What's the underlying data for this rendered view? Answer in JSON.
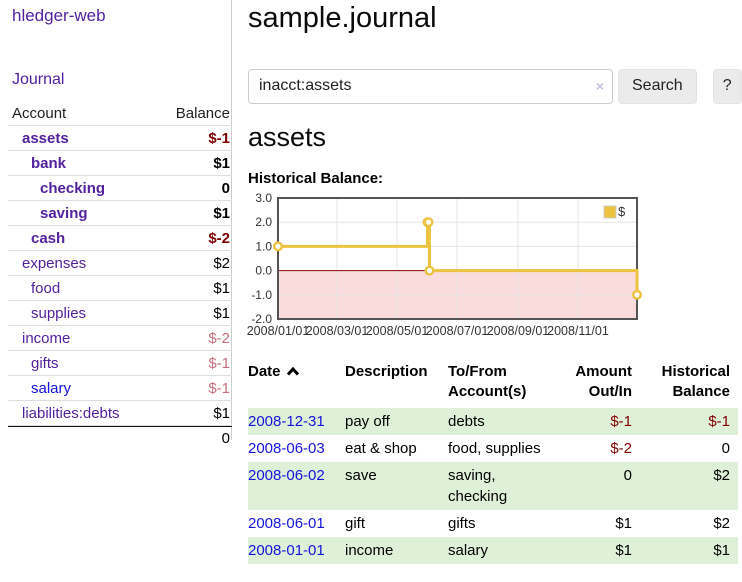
{
  "sidebar": {
    "app_title": "hledger-web",
    "nav": {
      "journal_label": "Journal"
    },
    "table": {
      "account_header": "Account",
      "balance_header": "Balance"
    },
    "accounts": [
      {
        "name": "assets",
        "balance": "$-1"
      },
      {
        "name": "bank",
        "balance": "$1"
      },
      {
        "name": "checking",
        "balance": "0"
      },
      {
        "name": "saving",
        "balance": "$1"
      },
      {
        "name": "cash",
        "balance": "$-2"
      },
      {
        "name": "expenses",
        "balance": "$2"
      },
      {
        "name": "food",
        "balance": "$1"
      },
      {
        "name": "supplies",
        "balance": "$1"
      },
      {
        "name": "income",
        "balance": "$-2"
      },
      {
        "name": "gifts",
        "balance": "$-1"
      },
      {
        "name": "salary",
        "balance": "$-1"
      },
      {
        "name": "liabilities:debts",
        "balance": "$1"
      }
    ],
    "total": "0"
  },
  "main": {
    "title": "sample.journal",
    "search": {
      "value": "inacct:assets",
      "clear_icon": "×",
      "button_label": "Search",
      "help_label": "?"
    },
    "account_heading": "assets",
    "chart_heading": "Historical Balance:"
  },
  "chart_data": {
    "type": "line",
    "title": "Historical Balance",
    "series": [
      {
        "name": "$",
        "color": "#edc240",
        "step": true,
        "x": [
          "2008-01-01",
          "2008-06-01",
          "2008-06-02",
          "2008-06-03",
          "2008-12-31"
        ],
        "values": [
          1,
          2,
          2,
          0,
          -1
        ]
      }
    ],
    "xlim": [
      "2008-01-01",
      "2008-12-31"
    ],
    "ylim": [
      -2,
      3
    ],
    "yticks": [
      3,
      2,
      1,
      0,
      -1,
      -2
    ],
    "ytick_labels": [
      "3.0",
      "2.0",
      "1.0",
      "0.0",
      "-1.0",
      "-2.0"
    ],
    "xticks": [
      "2008-01-01",
      "2008-03-01",
      "2008-05-01",
      "2008-07-01",
      "2008-09-01",
      "2008-11-01"
    ],
    "xtick_labels": [
      "2008/01/01",
      "2008/03/01",
      "2008/05/01",
      "2008/07/01",
      "2008/09/01",
      "2008/11/01"
    ],
    "legend": {
      "label": "$",
      "position": "top-right"
    },
    "grid": true,
    "negative_region_color": "#fbdcdc",
    "zero_line_color": "#8b0000",
    "grid_color": "#e6e6e6",
    "border_color": "#545454"
  },
  "table": {
    "headers": {
      "date": "Date",
      "description": "Description",
      "accounts": "To/From Account(s)",
      "amount": "Amount Out/In",
      "balance": "Historical Balance"
    },
    "rows": [
      {
        "date": "2008-12-31",
        "description": "pay off",
        "accounts": "debts",
        "amount": "$-1",
        "balance": "$-1"
      },
      {
        "date": "2008-06-03",
        "description": "eat & shop",
        "accounts": "food, supplies",
        "amount": "$-2",
        "balance": "0"
      },
      {
        "date": "2008-06-02",
        "description": "save",
        "accounts": "saving, checking",
        "amount": "0",
        "balance": "$2"
      },
      {
        "date": "2008-06-01",
        "description": "gift",
        "accounts": "gifts",
        "amount": "$1",
        "balance": "$2"
      },
      {
        "date": "2008-01-01",
        "description": "income",
        "accounts": "salary",
        "amount": "$1",
        "balance": "$1"
      }
    ]
  },
  "colors": {
    "link-purple": "#52219e",
    "link-blue": "#1414dd",
    "negative": "#800000",
    "negative-muted": "#c4717e",
    "row-green": "#dff0d8",
    "button-bg": "#ebebeb",
    "chart-gold": "#edc240"
  }
}
